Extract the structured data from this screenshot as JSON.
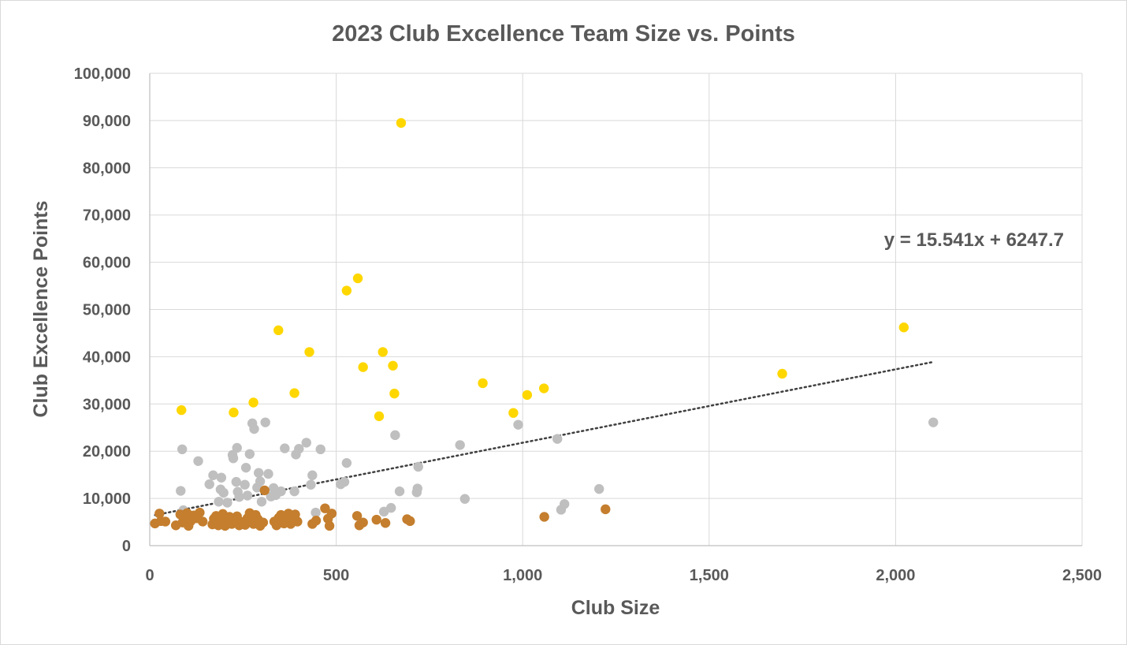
{
  "chart_data": {
    "type": "scatter",
    "title": "2023 Club Excellence Team Size vs. Points",
    "xlabel": "Club Size",
    "ylabel": "Club Excellence Points",
    "xlim": [
      0,
      2500
    ],
    "ylim": [
      0,
      100000
    ],
    "x_ticks": [
      0,
      500,
      1000,
      1500,
      2000,
      2500
    ],
    "x_tick_labels": [
      "0",
      "500",
      "1,000",
      "1,500",
      "2,000",
      "2,500"
    ],
    "y_ticks": [
      0,
      10000,
      20000,
      30000,
      40000,
      50000,
      60000,
      70000,
      80000,
      90000,
      100000
    ],
    "y_tick_labels": [
      "0",
      "10,000",
      "20,000",
      "30,000",
      "40,000",
      "50,000",
      "60,000",
      "70,000",
      "80,000",
      "90,000",
      "100,000"
    ],
    "grid": "major gridlines on both axes",
    "series": [
      {
        "color": "#FFD700",
        "points": [
          [
            85,
            28700
          ],
          [
            225,
            28200
          ],
          [
            278,
            30300
          ],
          [
            345,
            45600
          ],
          [
            388,
            32300
          ],
          [
            428,
            41000
          ],
          [
            528,
            54000
          ],
          [
            558,
            56600
          ],
          [
            572,
            37800
          ],
          [
            615,
            27400
          ],
          [
            625,
            41000
          ],
          [
            652,
            38100
          ],
          [
            656,
            32200
          ],
          [
            674,
            89500
          ],
          [
            893,
            34400
          ],
          [
            975,
            28100
          ],
          [
            1012,
            31900
          ],
          [
            1057,
            33300
          ],
          [
            1696,
            36400
          ],
          [
            2022,
            46200
          ]
        ]
      },
      {
        "color": "#BFBFBF",
        "points": [
          [
            83,
            11600
          ],
          [
            87,
            20400
          ],
          [
            90,
            7500
          ],
          [
            130,
            17900
          ],
          [
            160,
            13000
          ],
          [
            170,
            14900
          ],
          [
            185,
            9300
          ],
          [
            190,
            11900
          ],
          [
            192,
            14400
          ],
          [
            198,
            11200
          ],
          [
            208,
            9100
          ],
          [
            222,
            19200
          ],
          [
            224,
            18500
          ],
          [
            232,
            13500
          ],
          [
            234,
            20700
          ],
          [
            236,
            11400
          ],
          [
            240,
            10300
          ],
          [
            255,
            12900
          ],
          [
            258,
            16500
          ],
          [
            262,
            10600
          ],
          [
            268,
            19400
          ],
          [
            275,
            25900
          ],
          [
            280,
            24700
          ],
          [
            288,
            12300
          ],
          [
            292,
            15400
          ],
          [
            296,
            13600
          ],
          [
            300,
            9300
          ],
          [
            310,
            26100
          ],
          [
            318,
            15200
          ],
          [
            325,
            10400
          ],
          [
            332,
            12200
          ],
          [
            338,
            10700
          ],
          [
            352,
            11500
          ],
          [
            362,
            20600
          ],
          [
            388,
            11500
          ],
          [
            392,
            19300
          ],
          [
            400,
            20500
          ],
          [
            420,
            21800
          ],
          [
            432,
            12900
          ],
          [
            436,
            14900
          ],
          [
            445,
            7000
          ],
          [
            458,
            20400
          ],
          [
            512,
            13000
          ],
          [
            522,
            13500
          ],
          [
            528,
            17500
          ],
          [
            628,
            7200
          ],
          [
            647,
            8000
          ],
          [
            658,
            23400
          ],
          [
            670,
            11500
          ],
          [
            716,
            11300
          ],
          [
            718,
            12100
          ],
          [
            720,
            16700
          ],
          [
            832,
            21300
          ],
          [
            845,
            9900
          ],
          [
            988,
            25600
          ],
          [
            1093,
            22600
          ],
          [
            1103,
            7600
          ],
          [
            1112,
            8800
          ],
          [
            1205,
            12000
          ],
          [
            2101,
            26100
          ]
        ]
      },
      {
        "color": "#C47E2E",
        "points": [
          [
            14,
            4700
          ],
          [
            26,
            6800
          ],
          [
            30,
            5200
          ],
          [
            42,
            5100
          ],
          [
            70,
            4300
          ],
          [
            82,
            6600
          ],
          [
            88,
            4900
          ],
          [
            95,
            5500
          ],
          [
            100,
            6900
          ],
          [
            104,
            4200
          ],
          [
            110,
            5200
          ],
          [
            118,
            6400
          ],
          [
            126,
            5800
          ],
          [
            134,
            7000
          ],
          [
            142,
            5100
          ],
          [
            168,
            4500
          ],
          [
            172,
            5700
          ],
          [
            178,
            6300
          ],
          [
            184,
            4300
          ],
          [
            190,
            5300
          ],
          [
            196,
            6700
          ],
          [
            202,
            4200
          ],
          [
            210,
            5500
          ],
          [
            214,
            6100
          ],
          [
            220,
            4600
          ],
          [
            226,
            5200
          ],
          [
            234,
            6200
          ],
          [
            240,
            4300
          ],
          [
            248,
            5000
          ],
          [
            256,
            4400
          ],
          [
            262,
            5800
          ],
          [
            268,
            6900
          ],
          [
            272,
            5100
          ],
          [
            278,
            4600
          ],
          [
            284,
            6500
          ],
          [
            290,
            5600
          ],
          [
            296,
            4200
          ],
          [
            304,
            4900
          ],
          [
            308,
            11700
          ],
          [
            334,
            5100
          ],
          [
            340,
            4300
          ],
          [
            346,
            5900
          ],
          [
            352,
            6500
          ],
          [
            360,
            4700
          ],
          [
            366,
            5300
          ],
          [
            372,
            6800
          ],
          [
            378,
            4600
          ],
          [
            384,
            5800
          ],
          [
            390,
            6600
          ],
          [
            396,
            5100
          ],
          [
            436,
            4600
          ],
          [
            446,
            5300
          ],
          [
            470,
            7900
          ],
          [
            478,
            5700
          ],
          [
            482,
            4200
          ],
          [
            488,
            6800
          ],
          [
            556,
            6300
          ],
          [
            562,
            4300
          ],
          [
            572,
            4900
          ],
          [
            608,
            5500
          ],
          [
            632,
            4800
          ],
          [
            690,
            5600
          ],
          [
            698,
            5200
          ],
          [
            1058,
            6100
          ],
          [
            1222,
            7700
          ]
        ]
      }
    ],
    "trendline": {
      "label": "y = 15.541x + 6247.7",
      "slope": 15.541,
      "intercept": 6247.7,
      "x_range": [
        14,
        2101
      ],
      "style": "dotted",
      "color": "#404040"
    }
  }
}
